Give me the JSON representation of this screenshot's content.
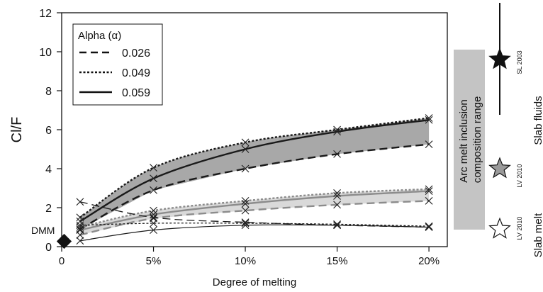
{
  "chart_data": {
    "type": "line",
    "xlabel": "Degree of melting",
    "ylabel": "Cl/F",
    "xlim": [
      0,
      0.21
    ],
    "ylim": [
      0,
      12
    ],
    "x_ticks": [
      {
        "value": 0,
        "label": "0"
      },
      {
        "value": 0.05,
        "label": "5%"
      },
      {
        "value": 0.1,
        "label": "10%"
      },
      {
        "value": 0.15,
        "label": "15%"
      },
      {
        "value": 0.2,
        "label": "20%"
      }
    ],
    "y_ticks": [
      {
        "value": 0,
        "label": "0"
      },
      {
        "value": 2,
        "label": "2"
      },
      {
        "value": 4,
        "label": "4"
      },
      {
        "value": 6,
        "label": "6"
      },
      {
        "value": 8,
        "label": "8"
      },
      {
        "value": 10,
        "label": "10"
      },
      {
        "value": 12,
        "label": "12"
      }
    ],
    "legend": {
      "title": "Alpha (α)",
      "position": "top-left",
      "entries": [
        {
          "label": "0.026",
          "style": "dashed"
        },
        {
          "label": "0.049",
          "style": "dotted"
        },
        {
          "label": "0.059",
          "style": "solid"
        }
      ]
    },
    "x_points": [
      0.01,
      0.05,
      0.1,
      0.15,
      0.2
    ],
    "groups": [
      {
        "source": "SL 2003",
        "band_color": "#a8a8a8",
        "line_color": "#1a1a1a",
        "series": [
          {
            "alpha": "0.026",
            "style": "dashed",
            "y": [
              0.9,
              2.9,
              4.0,
              4.75,
              5.25
            ]
          },
          {
            "alpha": "0.049",
            "style": "dotted",
            "y": [
              1.5,
              4.05,
              5.35,
              6.0,
              6.6
            ]
          },
          {
            "alpha": "0.059",
            "style": "solid",
            "y": [
              1.3,
              3.5,
              5.0,
              5.9,
              6.5
            ]
          }
        ]
      },
      {
        "source": "LV 2010 (slab fluids)",
        "band_color": "#d9d9d9",
        "line_color": "#8c8c8c",
        "series": [
          {
            "alpha": "0.026",
            "style": "dashed",
            "y": [
              0.6,
              1.45,
              1.85,
              2.15,
              2.35
            ]
          },
          {
            "alpha": "0.049",
            "style": "dotted",
            "y": [
              1.0,
              1.85,
              2.35,
              2.75,
              2.95
            ]
          },
          {
            "alpha": "0.059",
            "style": "solid",
            "y": [
              0.85,
              1.65,
              2.2,
              2.6,
              2.85
            ]
          }
        ]
      },
      {
        "source": "LV 2010 (slab melt)",
        "band_color": "none",
        "line_color": "#1a1a1a",
        "series": [
          {
            "alpha": "0.026",
            "style": "dashed",
            "y": [
              2.3,
              1.5,
              1.25,
              1.1,
              1.0
            ]
          },
          {
            "alpha": "0.049",
            "style": "dotted",
            "y": [
              1.1,
              1.2,
              1.2,
              1.15,
              1.05
            ]
          },
          {
            "alpha": "0.059",
            "style": "solid",
            "y": [
              0.3,
              0.85,
              1.1,
              1.1,
              1.0
            ]
          }
        ]
      }
    ],
    "dmm": {
      "label": "DMM",
      "x": 0.001,
      "y": 0.3
    },
    "arc_range": {
      "label_line1": "Arc melt inclusion",
      "label_line2": "composition range",
      "y_range": [
        0.9,
        10.1
      ]
    },
    "end_members": [
      {
        "id": "sl2003",
        "label": "SL 2003",
        "symbol": "star",
        "fill": "#111111",
        "y": 9.6
      },
      {
        "id": "lv2010-fluid",
        "label": "LV 2010",
        "symbol": "star",
        "fill": "#9a9a9a",
        "y": 4.0
      },
      {
        "id": "lv2010-melt",
        "label": "LV 2010",
        "symbol": "star",
        "fill": "#ffffff",
        "y": 0.9
      }
    ],
    "side_labels": {
      "slab_fluids": "Slab fluids",
      "slab_melt": "Slab melt"
    }
  }
}
